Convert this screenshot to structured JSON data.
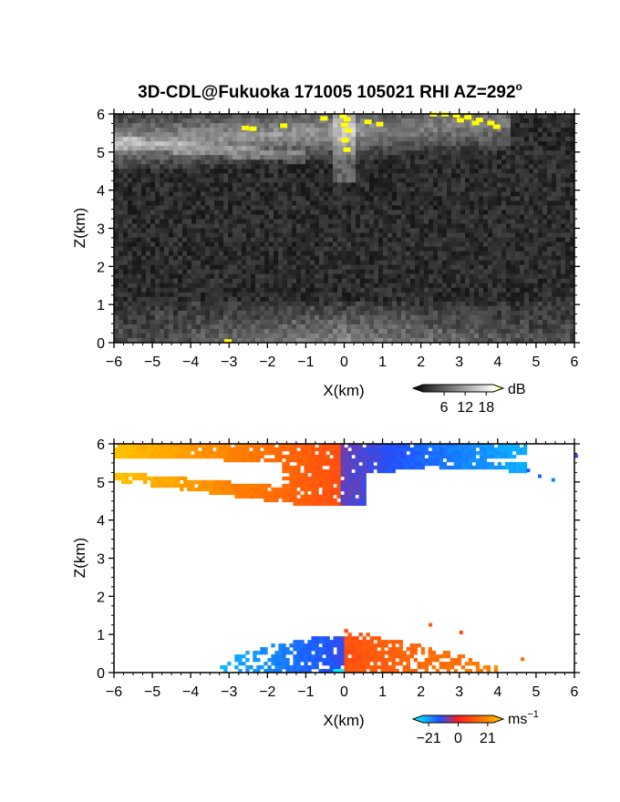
{
  "chart_data": [
    {
      "type": "heatmap",
      "title": "3D-CDL@Fukuoka 171005 105021 RHI AZ=292",
      "title_superscript": "o",
      "xlabel": "X(km)",
      "ylabel": "Z(km)",
      "xlim": [
        -6,
        6
      ],
      "ylim": [
        0,
        6
      ],
      "x_ticks": [
        "-6",
        "-5",
        "-4",
        "-3",
        "-2",
        "-1",
        "0",
        "1",
        "2",
        "3",
        "4",
        "5",
        "6"
      ],
      "y_ticks": [
        "0",
        "1",
        "2",
        "3",
        "4",
        "5",
        "6"
      ],
      "colorbar": {
        "label": "dB",
        "ticks": [
          "6",
          "12",
          "18"
        ],
        "range": [
          0,
          20
        ],
        "colors": [
          "#000000",
          "#ffffff",
          "#ffff00"
        ]
      },
      "field": "SNR (grayscale)",
      "features": [
        {
          "desc": "bright layer near top",
          "x_range": [
            -6,
            4
          ],
          "z_range": [
            5.0,
            6.0
          ],
          "level_db": 14
        },
        {
          "desc": "saturated points",
          "x_range": [
            -0.2,
            4
          ],
          "z_range": [
            5.5,
            6.0
          ],
          "level_db": 20
        },
        {
          "desc": "boundary layer echo",
          "x_range": [
            -6,
            6
          ],
          "z_range": [
            0,
            1.1
          ],
          "level_db": 9
        }
      ]
    },
    {
      "type": "heatmap",
      "title": "",
      "xlabel": "X(km)",
      "ylabel": "Z(km)",
      "xlim": [
        -6,
        6
      ],
      "ylim": [
        0,
        6
      ],
      "x_ticks": [
        "-6",
        "-5",
        "-4",
        "-3",
        "-2",
        "-1",
        "0",
        "1",
        "2",
        "3",
        "4",
        "5",
        "6"
      ],
      "y_ticks": [
        "0",
        "1",
        "2",
        "3",
        "4",
        "5",
        "6"
      ],
      "colorbar": {
        "label": "ms",
        "label_superscript": "−1",
        "ticks": [
          "−21",
          "0",
          "21"
        ],
        "range": [
          -25,
          25
        ],
        "colors": [
          "#00ffff",
          "#1e50ff",
          "#ff1e1e",
          "#ffcc00"
        ]
      },
      "field": "Radial velocity",
      "features": [
        {
          "desc": "upper layer, receding side",
          "x_range": [
            -6,
            0
          ],
          "z_range": [
            4.3,
            6.0
          ],
          "velocity_ms": 12
        },
        {
          "desc": "upper layer, approaching side",
          "x_range": [
            0,
            4.8
          ],
          "z_range": [
            4.3,
            6.0
          ],
          "velocity_ms": -12
        },
        {
          "desc": "lower layer, approaching side",
          "x_range": [
            -3.3,
            0
          ],
          "z_range": [
            0,
            1.0
          ],
          "velocity_ms": -15
        },
        {
          "desc": "lower layer, receding side",
          "x_range": [
            0,
            4
          ],
          "z_range": [
            0,
            1.2
          ],
          "velocity_ms": 15
        }
      ]
    }
  ]
}
